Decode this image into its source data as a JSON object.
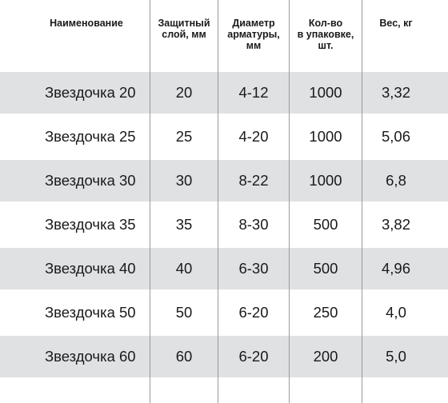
{
  "headers": [
    "Наименование",
    "Защитный\nслой, мм",
    "Диаметр\nарматуры,\nмм",
    "Кол-во\nв упаковке,\nшт.",
    "Вес, кг"
  ],
  "rows": [
    [
      "Звездочка 20",
      "20",
      "4-12",
      "1000",
      "3,32"
    ],
    [
      "Звездочка 25",
      "25",
      "4-20",
      "1000",
      "5,06"
    ],
    [
      "Звездочка 30",
      "30",
      "8-22",
      "1000",
      "6,8"
    ],
    [
      "Звездочка 35",
      "35",
      "8-30",
      "500",
      "3,82"
    ],
    [
      "Звездочка 40",
      "40",
      "6-30",
      "500",
      "4,96"
    ],
    [
      "Звездочка 50",
      "50",
      "6-20",
      "250",
      "4,0"
    ],
    [
      "Звездочка 60",
      "60",
      "6-20",
      "200",
      "5,0"
    ]
  ],
  "colors": {
    "shaded_row": "#dfe1e3",
    "divider": "#9a9a9a",
    "text": "#1a1a1a"
  }
}
